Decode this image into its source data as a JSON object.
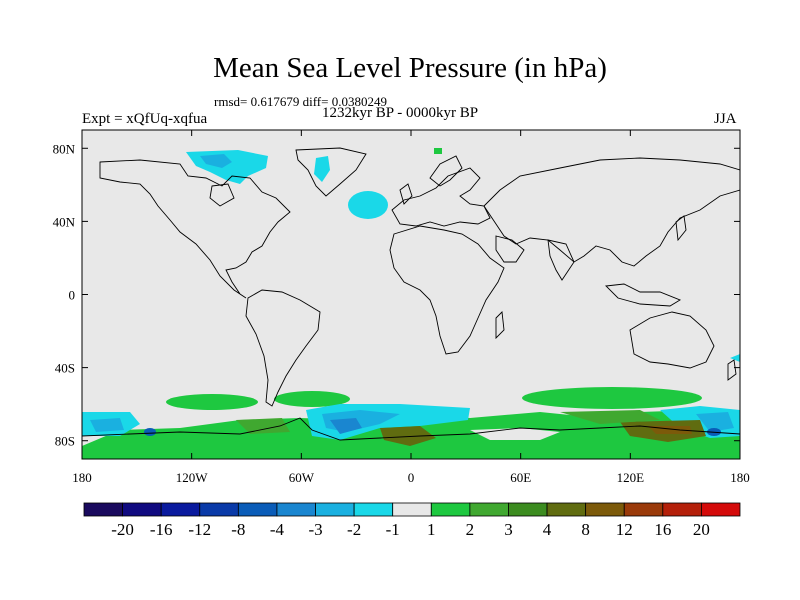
{
  "title": "Mean Sea Level Pressure (in hPa)",
  "stats": "rmsd= 0.617679 diff= 0.0380249",
  "experiment": "Expt = xQfUq-xqfua",
  "period": "1232kyr BP - 0000kyr BP",
  "season": "JJA",
  "axes": {
    "lon_ticks": [
      {
        "value": -180,
        "label": "180"
      },
      {
        "value": -120,
        "label": "120W"
      },
      {
        "value": -60,
        "label": "60W"
      },
      {
        "value": 0,
        "label": "0"
      },
      {
        "value": 60,
        "label": "60E"
      },
      {
        "value": 120,
        "label": "120E"
      },
      {
        "value": 180,
        "label": "180"
      }
    ],
    "lat_ticks": [
      {
        "value": 80,
        "label": "80N"
      },
      {
        "value": 40,
        "label": "40N"
      },
      {
        "value": 0,
        "label": "0"
      },
      {
        "value": -40,
        "label": "40S"
      },
      {
        "value": -80,
        "label": "80S"
      }
    ],
    "lon_range": [
      -180,
      180
    ],
    "lat_range": [
      -90,
      90
    ]
  },
  "colorbar": {
    "colors": [
      "#1a0a5e",
      "#100a80",
      "#0a1a9e",
      "#0a3aa8",
      "#0a5cb8",
      "#1a86d0",
      "#1ab0e0",
      "#1ad8e8",
      "#e8e8e8",
      "#1ec840",
      "#40a830",
      "#3c8c20",
      "#606c10",
      "#7c5a0a",
      "#9a3a0a",
      "#b4200a",
      "#d40a0a"
    ],
    "labels": [
      "-20",
      "-16",
      "-12",
      "-8",
      "-4",
      "-3",
      "-2",
      "-1",
      "1",
      "2",
      "3",
      "4",
      "8",
      "12",
      "16",
      "20"
    ]
  },
  "anomalies": {
    "negative_minus_1": "#1ad8e8",
    "negative_minus_2": "#1ab0e0",
    "negative_minus_3": "#1a86d0",
    "negative_minus_4": "#0a5cb8",
    "positive_1": "#1ec840",
    "positive_2": "#40a830",
    "positive_3": "#3c8c20",
    "positive_4": "#606c10",
    "positive_8": "#7c5a0a"
  }
}
